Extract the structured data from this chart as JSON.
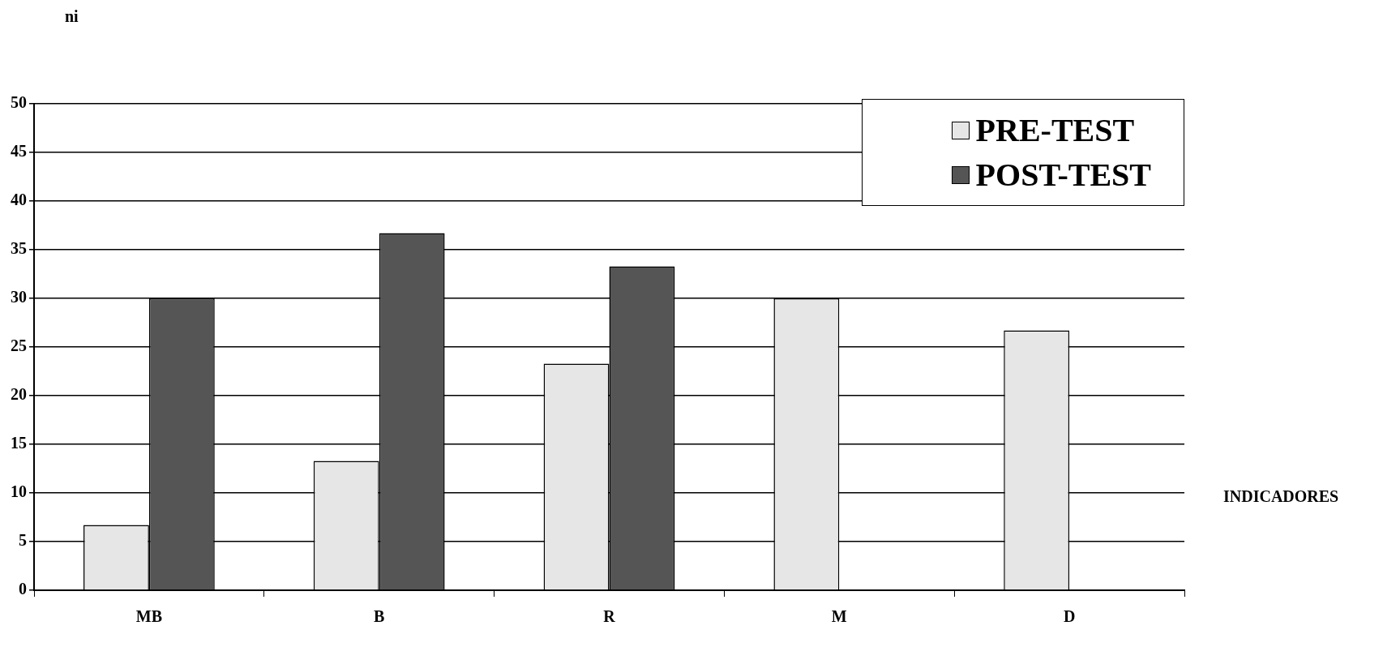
{
  "chart_data": {
    "type": "bar",
    "xlabel": "INDICADORES",
    "ylabel": "ni",
    "categories": [
      "MB",
      "B",
      "R",
      "M",
      "D"
    ],
    "series": [
      {
        "name": "PRE-TEST",
        "color": "#e6e6e6",
        "values": [
          6.7,
          13.3,
          23.3,
          30,
          26.7
        ]
      },
      {
        "name": "POST-TEST",
        "color": "#555555",
        "values": [
          30,
          36.7,
          33.3,
          0,
          0
        ]
      }
    ],
    "ylim": [
      0,
      50
    ],
    "yticks": [
      0,
      5,
      10,
      15,
      20,
      25,
      30,
      35,
      40,
      45,
      50
    ],
    "grid": "y",
    "legend": "top right"
  }
}
